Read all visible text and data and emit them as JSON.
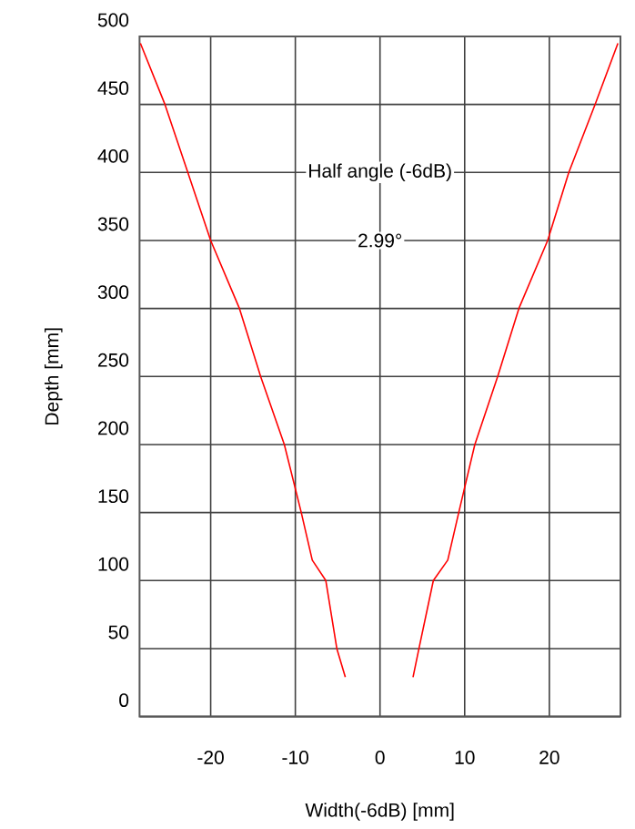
{
  "chart_data": {
    "type": "line",
    "xlabel": "Width(-6dB) [mm]",
    "ylabel": "Depth [mm]",
    "annotations": [
      "Half angle (-6dB)",
      "2.99°"
    ],
    "xlim": [
      -28.4,
      28.4
    ],
    "xticks": [
      -20,
      -10,
      0,
      10,
      20
    ],
    "ylim": [
      0,
      500
    ],
    "yticks": [
      0,
      50,
      100,
      150,
      200,
      250,
      300,
      350,
      400,
      450,
      500
    ],
    "grid": true,
    "marker": "none",
    "line_style": "solid",
    "series": [
      {
        "color": "#ff0000",
        "x": [
          -4.1,
          -5.1,
          -6.4,
          -8.0,
          -9.3,
          -11.3,
          -14.1,
          -16.6,
          -20,
          -22.7,
          -25.4,
          -28.3
        ],
        "values": [
          29,
          50,
          100,
          115,
          150,
          200,
          250,
          300,
          350,
          400,
          450,
          495
        ]
      },
      {
        "color": "#ff0000",
        "x": [
          3.9,
          4.6,
          6.3,
          8.0,
          9.3,
          11.2,
          13.9,
          16.4,
          19.8,
          22.3,
          25.4,
          28.1
        ],
        "values": [
          29,
          50,
          100,
          115,
          150,
          200,
          250,
          300,
          350,
          400,
          450,
          495
        ]
      }
    ]
  }
}
